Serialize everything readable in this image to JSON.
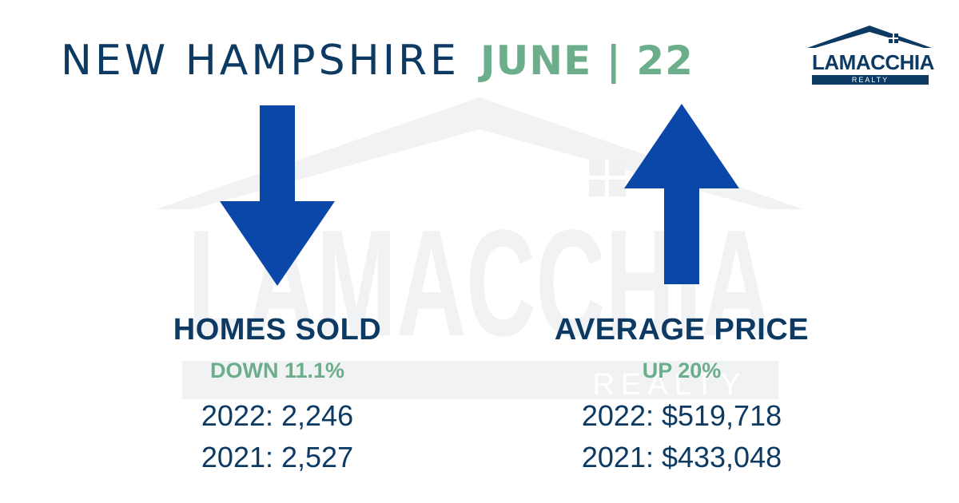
{
  "header": {
    "title_main": "NEW HAMPSHIRE",
    "title_accent": "JUNE | 22"
  },
  "logo": {
    "wordmark": "LAMACCHIA",
    "sub": "REALTY"
  },
  "watermark": {
    "wordmark": "LAMACCHIA",
    "sub": "REALTY"
  },
  "stats": [
    {
      "heading": "HOMES SOLD",
      "change": "DOWN 11.1%",
      "line1": "2022: 2,246",
      "line2": "2021: 2,527",
      "direction": "down-arrow-icon"
    },
    {
      "heading": "AVERAGE PRICE",
      "change": "UP 20%",
      "line1": "2022: $519,718",
      "line2": "2021: $433,048",
      "direction": "up-arrow-icon"
    }
  ],
  "colors": {
    "navy": "#0c3a63",
    "green": "#6cae8b",
    "arrow_blue": "#0a47a8",
    "watermark": "#f1f2f4"
  }
}
